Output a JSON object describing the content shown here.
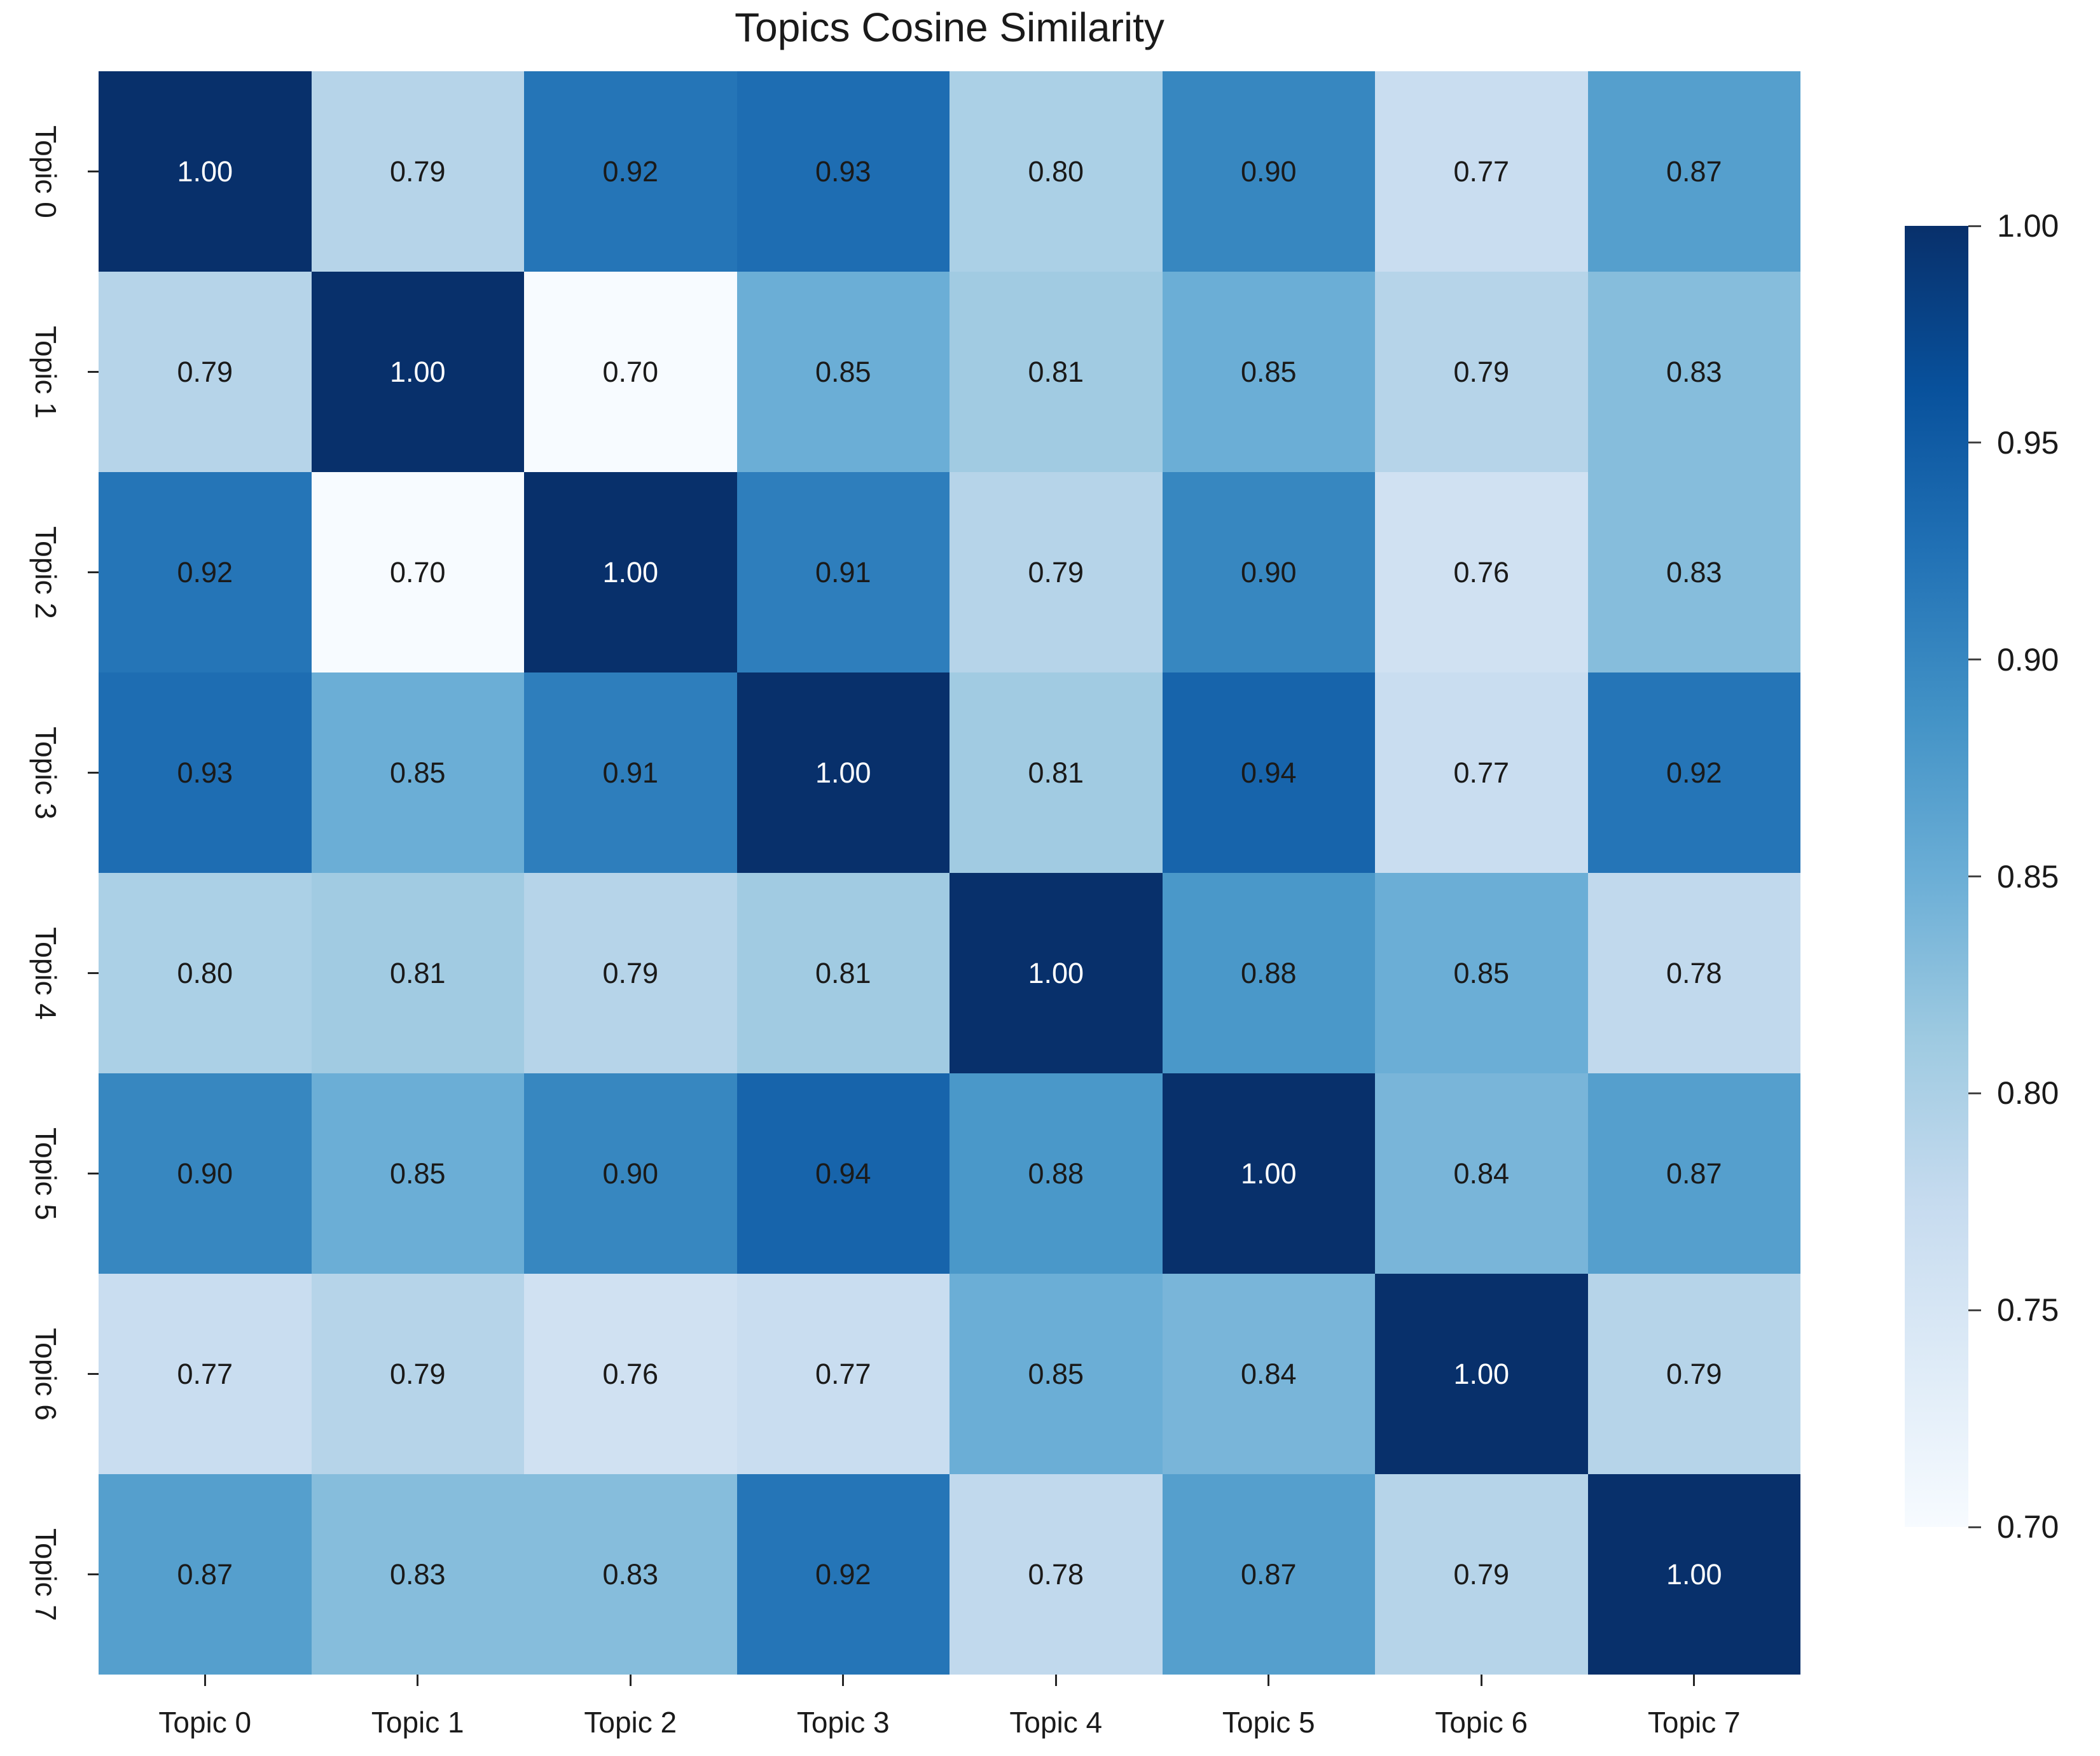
{
  "chart_data": {
    "type": "heatmap",
    "title": "Topics Cosine Similarity",
    "categories": [
      "Topic 0",
      "Topic 1",
      "Topic 2",
      "Topic 3",
      "Topic 4",
      "Topic 5",
      "Topic 6",
      "Topic 7"
    ],
    "x_tick_labels": [
      "Topic 0",
      "Topic 1",
      "Topic 2",
      "Topic 3",
      "Topic 4",
      "Topic 5",
      "Topic 6",
      "Topic 7"
    ],
    "y_tick_labels": [
      "Topic 0",
      "Topic 1",
      "Topic 2",
      "Topic 3",
      "Topic 4",
      "Topic 5",
      "Topic 6",
      "Topic 7"
    ],
    "matrix": [
      [
        1.0,
        0.79,
        0.92,
        0.93,
        0.8,
        0.9,
        0.77,
        0.87
      ],
      [
        0.79,
        1.0,
        0.7,
        0.85,
        0.81,
        0.85,
        0.79,
        0.83
      ],
      [
        0.92,
        0.7,
        1.0,
        0.91,
        0.79,
        0.9,
        0.76,
        0.83
      ],
      [
        0.93,
        0.85,
        0.91,
        1.0,
        0.81,
        0.94,
        0.77,
        0.92
      ],
      [
        0.8,
        0.81,
        0.79,
        0.81,
        1.0,
        0.88,
        0.85,
        0.78
      ],
      [
        0.9,
        0.85,
        0.9,
        0.94,
        0.88,
        1.0,
        0.84,
        0.87
      ],
      [
        0.77,
        0.79,
        0.76,
        0.77,
        0.85,
        0.84,
        1.0,
        0.79
      ],
      [
        0.87,
        0.83,
        0.83,
        0.92,
        0.78,
        0.87,
        0.79,
        1.0
      ]
    ],
    "value_format_decimals": 2,
    "colorbar": {
      "position": "right",
      "tick_labels": [
        "1.00",
        "0.95",
        "0.90",
        "0.85",
        "0.80",
        "0.75",
        "0.70"
      ],
      "vmin": 0.7,
      "vmax": 1.0
    },
    "colormap": {
      "name": "Blues",
      "anchors": [
        "#f7fbff",
        "#deebf7",
        "#c6dbef",
        "#9ecae1",
        "#6baed6",
        "#4292c6",
        "#2171b5",
        "#08519c",
        "#08306b"
      ]
    },
    "annotation_text_color_dark": "#1a1a1a",
    "annotation_text_color_light": "#ffffff",
    "grid": false,
    "legend": "colorbar-right"
  }
}
